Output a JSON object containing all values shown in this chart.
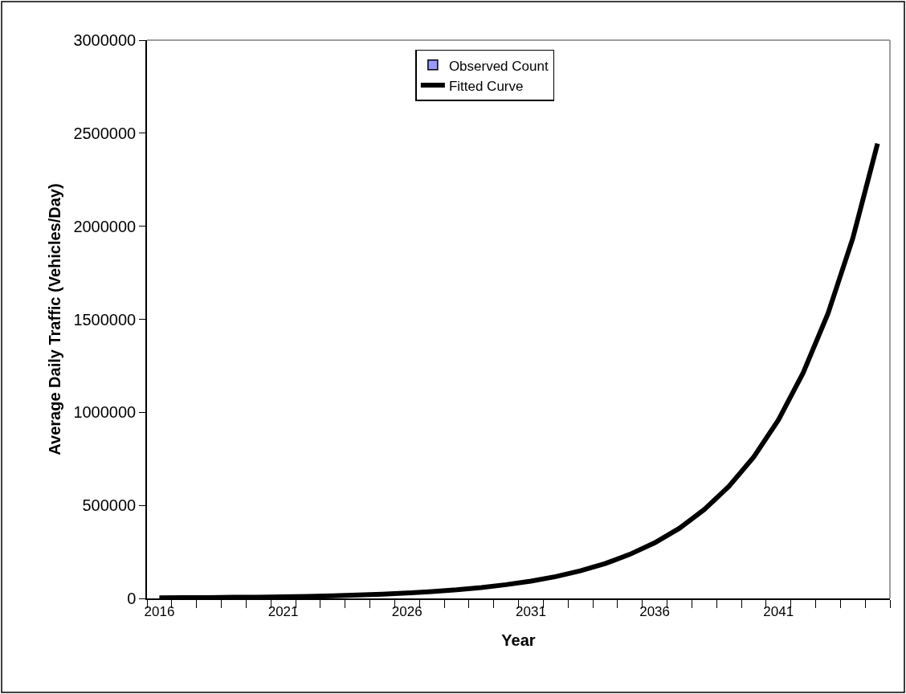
{
  "chart_data": {
    "type": "line",
    "xlabel": "Year",
    "ylabel": "Average Daily Traffic (Vehicles/Day)",
    "categories": [
      "2016",
      null,
      null,
      null,
      null,
      "2021",
      null,
      null,
      null,
      null,
      "2026",
      null,
      null,
      null,
      null,
      "2031",
      null,
      null,
      null,
      null,
      "2036",
      null,
      null,
      null,
      null,
      "2041",
      null,
      null,
      null,
      null
    ],
    "series": [
      {
        "name": "Observed Count",
        "type": "bar",
        "color": "#9999ff",
        "values": [
          null,
          null,
          null,
          null,
          null,
          null,
          null,
          null,
          null,
          null,
          null,
          null,
          null,
          null,
          null,
          null,
          null,
          null,
          null,
          null,
          null,
          null,
          null,
          null,
          null,
          null,
          null,
          null,
          null,
          null
        ]
      },
      {
        "name": "Fitted Curve",
        "color": "#000000",
        "values": [
          3000,
          4000,
          4000,
          6000,
          7000,
          9000,
          11000,
          14000,
          18000,
          23000,
          29000,
          37000,
          46000,
          58000,
          74000,
          93000,
          117000,
          148000,
          187000,
          237000,
          299000,
          377000,
          477000,
          602000,
          760000,
          960000,
          1213000,
          1532000,
          1935000,
          2444000
        ]
      }
    ],
    "ylim": [
      0,
      3000000
    ],
    "yticks": [
      0,
      500000,
      1000000,
      1500000,
      2000000,
      2500000,
      3000000
    ],
    "legend": "top",
    "marker": "none",
    "line_style": "solid"
  }
}
